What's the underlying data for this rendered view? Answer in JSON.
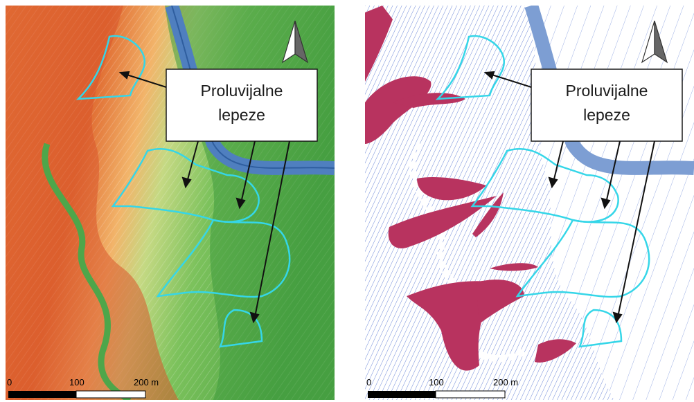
{
  "label": {
    "line1": "Proluvijalne",
    "line2": "lepeze"
  },
  "scale_bar": {
    "ticks": [
      "0",
      "100",
      "200 m"
    ]
  },
  "north_arrow": {
    "icon": "north-arrow-icon"
  },
  "legend_colors": {
    "fan_outline": "#35d6e8",
    "river": "#4f7fbf",
    "landslide": "#b8335f",
    "contour": "#2f56c8"
  },
  "panels": [
    {
      "id": "left",
      "type": "slope-hillshade"
    },
    {
      "id": "right",
      "type": "contour-map"
    }
  ]
}
